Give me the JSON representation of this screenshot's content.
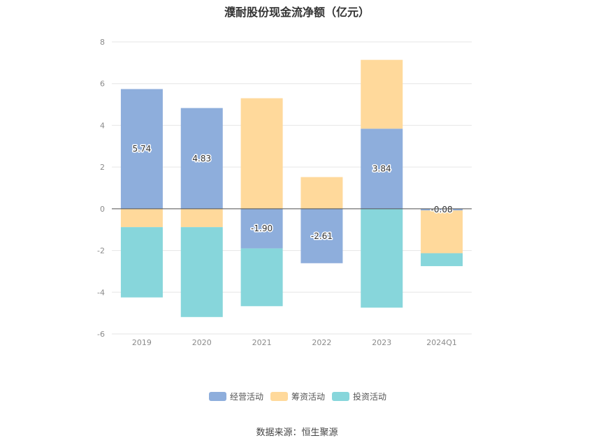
{
  "chart_data": {
    "type": "bar",
    "stacked": true,
    "title": "濮耐股份现金流净额（亿元）",
    "categories": [
      "2019",
      "2020",
      "2021",
      "2022",
      "2023",
      "2024Q1"
    ],
    "series": [
      {
        "name": "经营活动",
        "color": "#8eaedc",
        "values": [
          5.74,
          4.83,
          -1.9,
          -2.61,
          3.84,
          -0.08
        ],
        "labels": [
          "5.74",
          "4.83",
          "-1.90",
          "-2.61",
          "3.84",
          "-0.08"
        ]
      },
      {
        "name": "筹资活动",
        "color": "#ffd99b",
        "values": [
          -0.88,
          -0.88,
          5.3,
          1.52,
          3.3,
          -2.05
        ]
      },
      {
        "name": "投资活动",
        "color": "#87d6db",
        "values": [
          -3.37,
          -4.31,
          -2.77,
          0,
          -4.74,
          -0.62
        ]
      }
    ],
    "ylim": [
      -6,
      8
    ],
    "yticks": [
      -6,
      -4,
      -2,
      0,
      2,
      4,
      6,
      8
    ],
    "grid": true,
    "legend_position": "bottom"
  },
  "source_text": "数据来源：恒生聚源"
}
